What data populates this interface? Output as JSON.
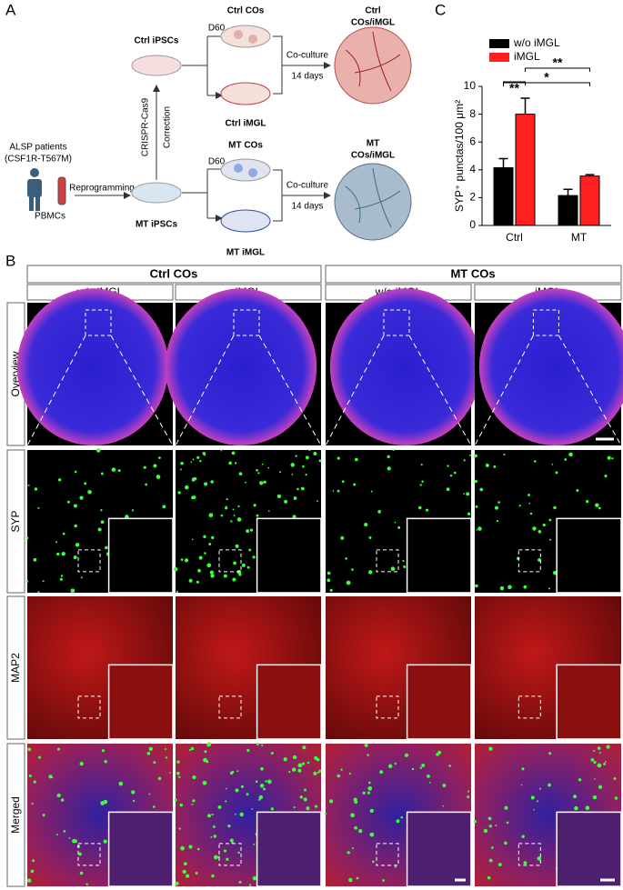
{
  "panel_labels": [
    "A",
    "B",
    "C"
  ],
  "panel_a": {
    "ctrl_ipscs": "Ctrl iPSCs",
    "ctrl_d60": "D60",
    "ctrl_cos": "Ctrl COs",
    "ctrl_imgl": "Ctrl iMGL",
    "ctrl_coculture": [
      "Co-culture",
      "14 days"
    ],
    "ctrl_result": [
      "Ctrl",
      "COs/iMGL"
    ],
    "correction": [
      "CRISPR-Cas9",
      "Correction"
    ],
    "patients": [
      "ALSP patients",
      "(CSF1R-T567M)"
    ],
    "pbmcs": "PBMCs",
    "reprogramming": "Reprogramming",
    "mt_ipscs": "MT iPSCs",
    "mt_d60": "D60",
    "mt_cos": "MT COs",
    "mt_imgl": "MT iMGL",
    "mt_coculture": [
      "Co-culture",
      "14 days"
    ],
    "mt_result": [
      "MT",
      "COs/iMGL"
    ]
  },
  "panel_b": {
    "groups": [
      "Ctrl COs",
      "MT COs"
    ],
    "conditions": [
      "w/o iMGL",
      "iMGL",
      "w/o iMGL",
      "iMGL"
    ],
    "rows": [
      "Overview",
      "SYP",
      "MAP2",
      "Merged"
    ]
  },
  "chart_data": {
    "type": "bar",
    "y_label": "SYP⁺ punctas/100 μm²",
    "categories": [
      "Ctrl",
      "MT"
    ],
    "series": [
      {
        "name": "w/o iMGL",
        "color": "#000000",
        "values": [
          4.15,
          2.15
        ],
        "errors": [
          0.65,
          0.45
        ]
      },
      {
        "name": "iMGL",
        "color": "#ff2121",
        "values": [
          8.0,
          3.55
        ],
        "errors": [
          1.15,
          0.1
        ]
      }
    ],
    "ylim": [
      0,
      10
    ],
    "yticks": [
      0,
      2,
      4,
      6,
      8,
      10
    ],
    "annotations": [
      "**",
      "*",
      "**"
    ]
  }
}
